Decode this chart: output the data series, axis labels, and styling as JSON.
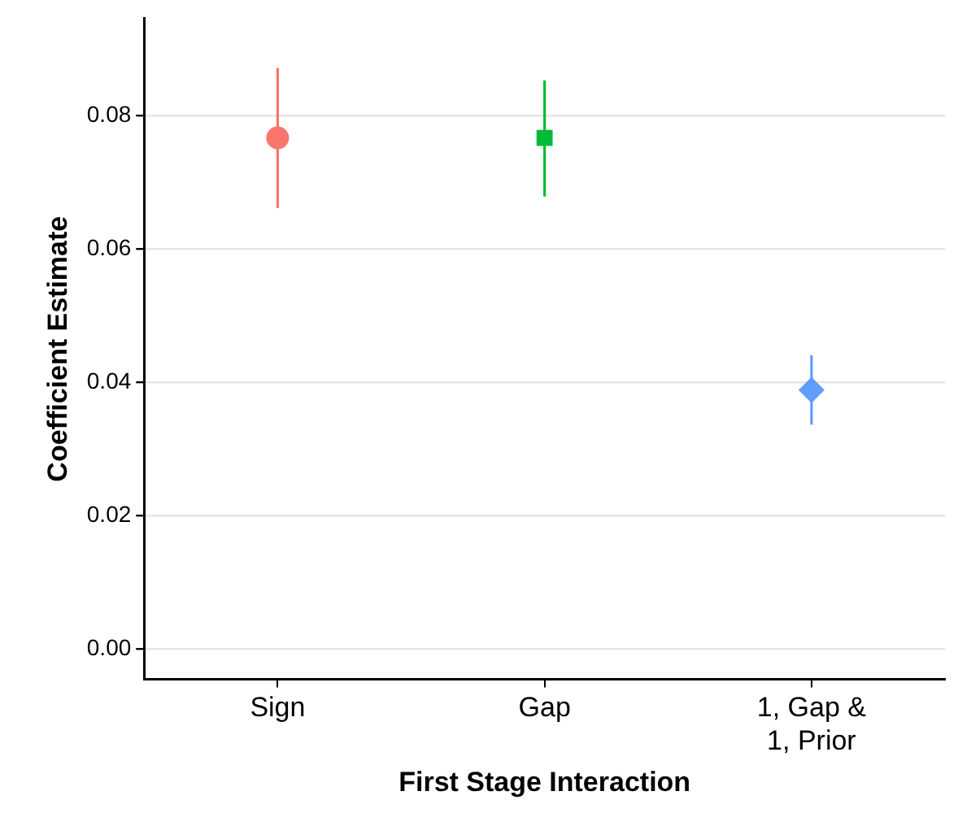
{
  "chart_data": {
    "type": "scatter",
    "xlabel": "First Stage Interaction",
    "ylabel": "Coefficient Estimate",
    "categories": [
      "Sign",
      "Gap",
      "1, Gap &\n1, Prior"
    ],
    "series": [
      {
        "color": "#f8766d",
        "marker": "circle",
        "values": [
          0.0767,
          null,
          null
        ],
        "errors": [
          [
            0.0662,
            0.0872
          ],
          null,
          null
        ]
      },
      {
        "color": "#00ba38",
        "marker": "square",
        "values": [
          null,
          0.0767,
          null
        ],
        "errors": [
          null,
          [
            0.0679,
            0.0853
          ],
          null
        ]
      },
      {
        "color": "#619cff",
        "marker": "diamond",
        "values": [
          null,
          null,
          0.0389
        ],
        "errors": [
          null,
          null,
          [
            0.0337,
            0.0441
          ]
        ]
      }
    ],
    "ylim": [
      -0.0045,
      0.0946
    ],
    "yticks": [
      {
        "value": 0,
        "label": "0.00"
      },
      {
        "value": 0.02,
        "label": "0.02"
      },
      {
        "value": 0.04,
        "label": "0.04"
      },
      {
        "value": 0.06,
        "label": "0.06"
      },
      {
        "value": 0.08,
        "label": "0.08"
      }
    ],
    "grid": "y",
    "legend": false
  }
}
